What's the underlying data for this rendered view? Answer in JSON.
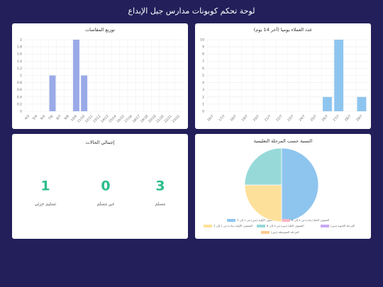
{
  "header": {
    "title": "لوحة تحكم كوبونات مدارس جيل الإبداع"
  },
  "chart_data": [
    {
      "type": "bar",
      "title": "توزيع المقاسات",
      "color": "#9aaae8",
      "categories": [
        "4/3",
        "5/4",
        "6/5",
        "7/6",
        "8/7",
        "9/8",
        "10/9",
        "11/10",
        "12/11",
        "13/12",
        "14/13",
        "15/14",
        "16/15",
        "17/16",
        "18/17",
        "19/18",
        "20/19",
        "21/20",
        "22/21",
        "23/22"
      ],
      "values": [
        0,
        0,
        0,
        1,
        0,
        0,
        2,
        1,
        0,
        0,
        0,
        0,
        0,
        0,
        0,
        0,
        0,
        0,
        0,
        0
      ],
      "ylim": [
        0,
        2
      ],
      "yticks": [
        0,
        0.2,
        0.4,
        0.6,
        0.8,
        1,
        1.2,
        1.4,
        1.6,
        1.8,
        2
      ],
      "grid": true
    },
    {
      "type": "bar",
      "title": "عدد العملاء يوميا (آخر 14 يوم)",
      "color": "#8ec5ef",
      "categories": [
        "16/7",
        "17/7",
        "18/7",
        "19/7",
        "20/7",
        "21/7",
        "22/7",
        "23/7",
        "24/7",
        "25/7",
        "26/7",
        "27/7",
        "28/7",
        "29/7"
      ],
      "values": [
        0,
        0,
        0,
        0,
        0,
        0,
        0,
        0,
        0,
        0,
        2,
        10,
        0,
        2
      ],
      "ylim": [
        0,
        10
      ],
      "yticks": [
        0,
        1,
        2,
        3,
        4,
        5,
        6,
        7,
        8,
        9,
        10
      ],
      "grid": true
    },
    {
      "type": "pie",
      "title": "النسبة حسب المرحلة التعليمية",
      "categories": [
        "الصفوف الأولية (بنين) من 1 إلى 3",
        "الصفوف العليا (بنات) من 4 إلى 6",
        "الصفوف الأولية (بنات) من 1 إلى 3",
        "الصفوف العليا (بنين) من 4 إلى 6",
        "المرحلة الثانوية (بنين)",
        "المرحلة المتوسطة (بنين)"
      ],
      "colors": [
        "#8ec5ef",
        "#f7b5c4",
        "#fde09a",
        "#97d9d9",
        "#c9a8f5",
        "#fdc88e"
      ],
      "values": [
        2,
        0,
        1,
        1,
        0,
        0
      ]
    }
  ],
  "stats": {
    "title": "إجمالي الحالات",
    "items": [
      {
        "value": "3",
        "label": "مسلم"
      },
      {
        "value": "0",
        "label": "غير مسلم"
      },
      {
        "value": "1",
        "label": "تسليم جزئي"
      }
    ]
  }
}
